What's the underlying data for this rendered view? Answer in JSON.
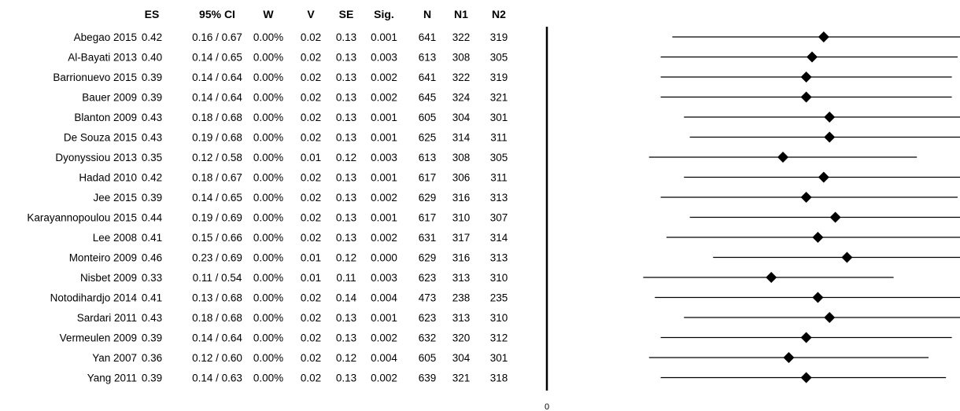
{
  "chart_data": {
    "type": "forest",
    "columns": [
      "ES",
      "95% CI",
      "W",
      "V",
      "SE",
      "Sig.",
      "N",
      "N1",
      "N2"
    ],
    "zero_label": "0",
    "rows": [
      {
        "study": "Abegao 2015",
        "es": "0.42",
        "ci": "0.16 / 0.67",
        "w": "0.00%",
        "v": "0.02",
        "se": "0.13",
        "sig": "0.001",
        "n": "641",
        "n1": "322",
        "n2": "319",
        "es_val": 0.42,
        "ci_low": 0.16,
        "ci_high": 0.67
      },
      {
        "study": "Al-Bayati 2013",
        "es": "0.40",
        "ci": "0.14 / 0.65",
        "w": "0.00%",
        "v": "0.02",
        "se": "0.13",
        "sig": "0.003",
        "n": "613",
        "n1": "308",
        "n2": "305",
        "es_val": 0.4,
        "ci_low": 0.14,
        "ci_high": 0.65
      },
      {
        "study": "Barrionuevo 2015",
        "es": "0.39",
        "ci": "0.14 / 0.64",
        "w": "0.00%",
        "v": "0.02",
        "se": "0.13",
        "sig": "0.002",
        "n": "641",
        "n1": "322",
        "n2": "319",
        "es_val": 0.39,
        "ci_low": 0.14,
        "ci_high": 0.64
      },
      {
        "study": "Bauer 2009",
        "es": "0.39",
        "ci": "0.14 / 0.64",
        "w": "0.00%",
        "v": "0.02",
        "se": "0.13",
        "sig": "0.002",
        "n": "645",
        "n1": "324",
        "n2": "321",
        "es_val": 0.39,
        "ci_low": 0.14,
        "ci_high": 0.64
      },
      {
        "study": "Blanton 2009",
        "es": "0.43",
        "ci": "0.18 / 0.68",
        "w": "0.00%",
        "v": "0.02",
        "se": "0.13",
        "sig": "0.001",
        "n": "605",
        "n1": "304",
        "n2": "301",
        "es_val": 0.43,
        "ci_low": 0.18,
        "ci_high": 0.68
      },
      {
        "study": "De Souza 2015",
        "es": "0.43",
        "ci": "0.19 / 0.68",
        "w": "0.00%",
        "v": "0.02",
        "se": "0.13",
        "sig": "0.001",
        "n": "625",
        "n1": "314",
        "n2": "311",
        "es_val": 0.43,
        "ci_low": 0.19,
        "ci_high": 0.68
      },
      {
        "study": "Dyonyssiou 2013",
        "es": "0.35",
        "ci": "0.12 / 0.58",
        "w": "0.00%",
        "v": "0.01",
        "se": "0.12",
        "sig": "0.003",
        "n": "613",
        "n1": "308",
        "n2": "305",
        "es_val": 0.35,
        "ci_low": 0.12,
        "ci_high": 0.58
      },
      {
        "study": "Hadad 2010",
        "es": "0.42",
        "ci": "0.18 / 0.67",
        "w": "0.00%",
        "v": "0.02",
        "se": "0.13",
        "sig": "0.001",
        "n": "617",
        "n1": "306",
        "n2": "311",
        "es_val": 0.42,
        "ci_low": 0.18,
        "ci_high": 0.67
      },
      {
        "study": "Jee 2015",
        "es": "0.39",
        "ci": "0.14 / 0.65",
        "w": "0.00%",
        "v": "0.02",
        "se": "0.13",
        "sig": "0.002",
        "n": "629",
        "n1": "316",
        "n2": "313",
        "es_val": 0.39,
        "ci_low": 0.14,
        "ci_high": 0.65
      },
      {
        "study": "Karayannopoulou 2015",
        "es": "0.44",
        "ci": "0.19 / 0.69",
        "w": "0.00%",
        "v": "0.02",
        "se": "0.13",
        "sig": "0.001",
        "n": "617",
        "n1": "310",
        "n2": "307",
        "es_val": 0.44,
        "ci_low": 0.19,
        "ci_high": 0.69
      },
      {
        "study": "Lee 2008",
        "es": "0.41",
        "ci": "0.15 / 0.66",
        "w": "0.00%",
        "v": "0.02",
        "se": "0.13",
        "sig": "0.002",
        "n": "631",
        "n1": "317",
        "n2": "314",
        "es_val": 0.41,
        "ci_low": 0.15,
        "ci_high": 0.66
      },
      {
        "study": "Monteiro 2009",
        "es": "0.46",
        "ci": "0.23 / 0.69",
        "w": "0.00%",
        "v": "0.01",
        "se": "0.12",
        "sig": "0.000",
        "n": "629",
        "n1": "316",
        "n2": "313",
        "es_val": 0.46,
        "ci_low": 0.23,
        "ci_high": 0.69
      },
      {
        "study": "Nisbet 2009",
        "es": "0.33",
        "ci": "0.11 / 0.54",
        "w": "0.00%",
        "v": "0.01",
        "se": "0.11",
        "sig": "0.003",
        "n": "623",
        "n1": "313",
        "n2": "310",
        "es_val": 0.33,
        "ci_low": 0.11,
        "ci_high": 0.54
      },
      {
        "study": "Notodihardjo 2014",
        "es": "0.41",
        "ci": "0.13 / 0.68",
        "w": "0.00%",
        "v": "0.02",
        "se": "0.14",
        "sig": "0.004",
        "n": "473",
        "n1": "238",
        "n2": "235",
        "es_val": 0.41,
        "ci_low": 0.13,
        "ci_high": 0.68
      },
      {
        "study": "Sardari 2011",
        "es": "0.43",
        "ci": "0.18 / 0.68",
        "w": "0.00%",
        "v": "0.02",
        "se": "0.13",
        "sig": "0.001",
        "n": "623",
        "n1": "313",
        "n2": "310",
        "es_val": 0.43,
        "ci_low": 0.18,
        "ci_high": 0.68
      },
      {
        "study": "Vermeulen 2009",
        "es": "0.39",
        "ci": "0.14 / 0.64",
        "w": "0.00%",
        "v": "0.02",
        "se": "0.13",
        "sig": "0.002",
        "n": "632",
        "n1": "320",
        "n2": "312",
        "es_val": 0.39,
        "ci_low": 0.14,
        "ci_high": 0.64
      },
      {
        "study": "Yan 2007",
        "es": "0.36",
        "ci": "0.12 / 0.60",
        "w": "0.00%",
        "v": "0.02",
        "se": "0.12",
        "sig": "0.004",
        "n": "605",
        "n1": "304",
        "n2": "301",
        "es_val": 0.36,
        "ci_low": 0.12,
        "ci_high": 0.6
      },
      {
        "study": "Yang 2011",
        "es": "0.39",
        "ci": "0.14 / 0.63",
        "w": "0.00%",
        "v": "0.02",
        "se": "0.13",
        "sig": "0.002",
        "n": "639",
        "n1": "321",
        "n2": "318",
        "es_val": 0.39,
        "ci_low": 0.14,
        "ci_high": 0.63
      }
    ]
  }
}
